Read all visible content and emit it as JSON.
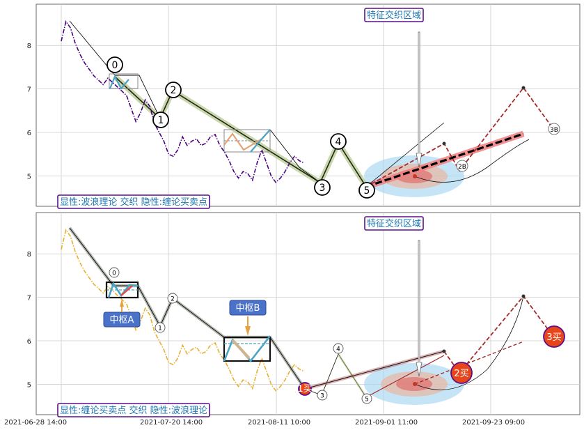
{
  "chart_data": [
    {
      "type": "line",
      "panel": "top",
      "title": "",
      "ylim": [
        4.3,
        8.95
      ],
      "yticks": [
        5,
        6,
        7,
        8
      ],
      "grid": true,
      "legend_text": "显性:波浪理论 交织 隐性:缠论买卖点",
      "top_annotation": "特征交织区域",
      "price_series": [
        [
          0,
          8.1
        ],
        [
          1,
          8.55
        ],
        [
          2,
          8.4
        ],
        [
          3,
          8.05
        ],
        [
          4,
          7.8
        ],
        [
          5,
          7.6
        ],
        [
          6,
          7.45
        ],
        [
          7,
          7.3
        ],
        [
          8,
          7.2
        ],
        [
          9,
          7.1
        ],
        [
          10,
          7.25
        ],
        [
          11,
          7.15
        ],
        [
          12,
          7.05
        ],
        [
          13,
          6.95
        ],
        [
          14,
          6.85
        ],
        [
          15,
          6.55
        ],
        [
          16,
          6.25
        ],
        [
          17,
          6.45
        ],
        [
          18,
          6.75
        ],
        [
          19,
          6.6
        ],
        [
          20,
          6.2
        ],
        [
          21,
          6.0
        ],
        [
          22,
          5.8
        ],
        [
          23,
          5.5
        ],
        [
          24,
          5.45
        ],
        [
          25,
          5.6
        ],
        [
          26,
          5.9
        ],
        [
          27,
          5.7
        ],
        [
          28,
          5.8
        ],
        [
          29,
          5.85
        ],
        [
          30,
          5.7
        ],
        [
          31,
          5.75
        ],
        [
          32,
          5.9
        ],
        [
          33,
          5.95
        ],
        [
          34,
          5.7
        ],
        [
          35,
          5.55
        ],
        [
          36,
          5.35
        ],
        [
          37,
          5.1
        ],
        [
          38,
          4.95
        ],
        [
          39,
          5.1
        ],
        [
          40,
          5.05
        ],
        [
          41,
          4.9
        ],
        [
          42,
          5.3
        ],
        [
          43,
          5.6
        ],
        [
          44,
          5.3
        ],
        [
          45,
          5.0
        ],
        [
          46,
          4.85
        ],
        [
          47,
          4.95
        ],
        [
          48,
          5.1
        ],
        [
          49,
          5.3
        ],
        [
          50,
          5.45
        ],
        [
          51,
          5.35
        ],
        [
          52,
          5.3
        ]
      ],
      "wave_points": [
        {
          "label": "0",
          "x": 8,
          "y": 7.3
        },
        {
          "label": "1",
          "x": 15,
          "y": 6.35
        },
        {
          "label": "2",
          "x": 18,
          "y": 6.9
        },
        {
          "label": "3",
          "x": 38,
          "y": 4.95
        },
        {
          "label": "4",
          "x": 42,
          "y": 5.7
        },
        {
          "label": "5",
          "x": 46,
          "y": 4.85
        }
      ],
      "projection": [
        {
          "label": "2B",
          "x": 59,
          "y": 5.2
        },
        {
          "label": "3B",
          "x": 74,
          "y": 6.1
        }
      ]
    },
    {
      "type": "line",
      "panel": "bottom",
      "title": "",
      "ylim": [
        4.3,
        8.95
      ],
      "yticks": [
        5,
        6,
        7,
        8
      ],
      "grid": true,
      "legend_text": "显性:缠论买卖点 交织 隐性:波浪理论",
      "top_annotation": "特征交织区域",
      "zhongshu_labels": [
        "中枢A",
        "中枢B"
      ],
      "buy_labels": [
        "1买",
        "2买",
        "3买"
      ],
      "wave_labels": [
        "0",
        "1",
        "2",
        "3",
        "4",
        "5"
      ],
      "price_series": [
        [
          0,
          8.1
        ],
        [
          1,
          8.55
        ],
        [
          2,
          8.4
        ],
        [
          3,
          8.05
        ],
        [
          4,
          7.8
        ],
        [
          5,
          7.6
        ],
        [
          6,
          7.45
        ],
        [
          7,
          7.3
        ],
        [
          8,
          7.2
        ],
        [
          9,
          7.1
        ],
        [
          10,
          7.25
        ],
        [
          11,
          7.15
        ],
        [
          12,
          7.05
        ],
        [
          13,
          6.95
        ],
        [
          14,
          6.85
        ],
        [
          15,
          6.55
        ],
        [
          16,
          6.25
        ],
        [
          17,
          6.45
        ],
        [
          18,
          6.75
        ],
        [
          19,
          6.6
        ],
        [
          20,
          6.2
        ],
        [
          21,
          6.0
        ],
        [
          22,
          5.8
        ],
        [
          23,
          5.5
        ],
        [
          24,
          5.45
        ],
        [
          25,
          5.6
        ],
        [
          26,
          5.9
        ],
        [
          27,
          5.7
        ],
        [
          28,
          5.8
        ],
        [
          29,
          5.85
        ],
        [
          30,
          5.7
        ],
        [
          31,
          5.75
        ],
        [
          32,
          5.9
        ],
        [
          33,
          5.95
        ],
        [
          34,
          5.7
        ],
        [
          35,
          5.55
        ],
        [
          36,
          5.35
        ],
        [
          37,
          5.1
        ],
        [
          38,
          4.95
        ],
        [
          39,
          5.1
        ],
        [
          40,
          5.05
        ],
        [
          41,
          4.9
        ],
        [
          42,
          5.3
        ],
        [
          43,
          5.6
        ],
        [
          44,
          5.3
        ],
        [
          45,
          5.0
        ],
        [
          46,
          4.85
        ],
        [
          47,
          4.95
        ],
        [
          48,
          5.1
        ],
        [
          49,
          5.3
        ],
        [
          50,
          5.45
        ],
        [
          51,
          5.35
        ],
        [
          52,
          5.3
        ]
      ]
    }
  ],
  "x_axis": {
    "tick_labels": [
      "2021-06-28 14:00",
      "2021-07-20 14:00",
      "2021-08-11 10:00",
      "2021-09-01 11:00",
      "2021-09-23 09:00"
    ]
  },
  "colors": {
    "price_top": "#4b0082",
    "price_bottom": "#e8b030",
    "label_border": "#5b0f8c",
    "label_text": "#1f77b4",
    "zhongshu_fill": "#4a72c8",
    "buy_fill": "#e8451a",
    "projection": "#a52a2a",
    "trend_red": "#f08080"
  }
}
